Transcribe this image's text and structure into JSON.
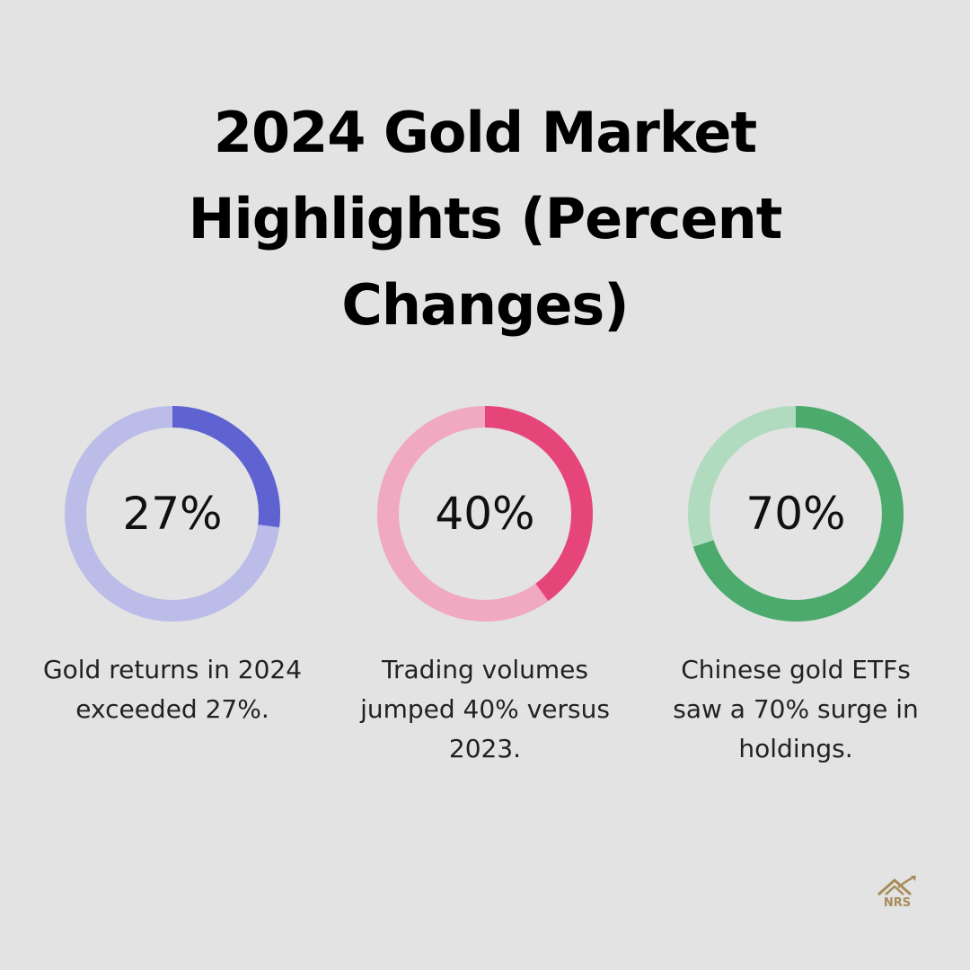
{
  "title": "2024 Gold Market Highlights (Percent Changes)",
  "chart_data": [
    {
      "type": "pie",
      "value": 27,
      "value_label": "27%",
      "caption": "Gold returns in 2024 exceeded 27%.",
      "colors": {
        "filled": "#5f63d1",
        "track": "#bbbde8"
      }
    },
    {
      "type": "pie",
      "value": 40,
      "value_label": "40%",
      "caption": "Trading volumes jumped 40% versus 2023.",
      "colors": {
        "filled": "#e6457a",
        "track": "#f1a8c1"
      }
    },
    {
      "type": "pie",
      "value": 70,
      "value_label": "70%",
      "caption": "Chinese gold ETFs saw a 70% surge in holdings.",
      "colors": {
        "filled": "#4caa6d",
        "track": "#b0dbbf"
      }
    }
  ],
  "logo": {
    "text": "NRS",
    "icon": "house-chart-logo",
    "color": "#a88d5c"
  }
}
